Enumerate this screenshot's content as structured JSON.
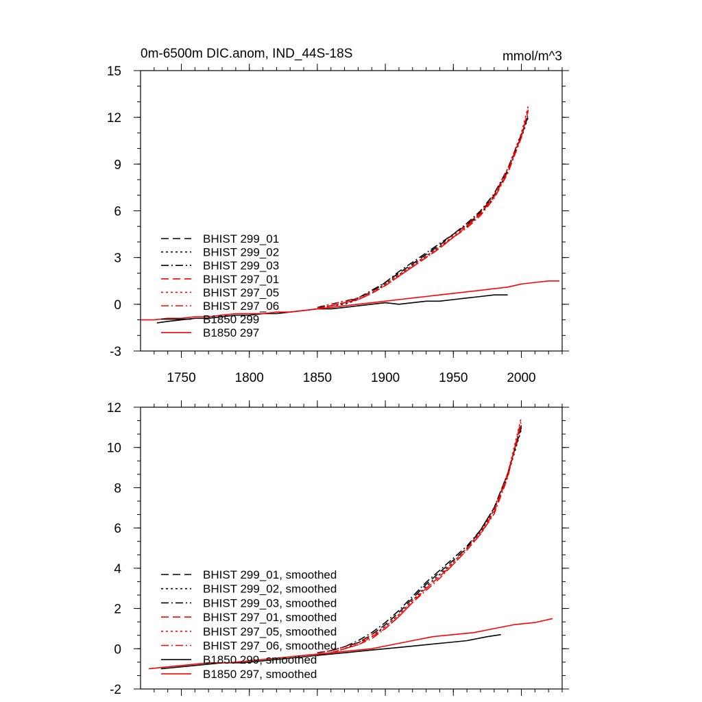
{
  "header": {
    "title": "0m-6500m DIC.anom, IND_44S-18S",
    "units": "mmol/m^3"
  },
  "colors": {
    "black": "#000000",
    "red": "#ff0000"
  },
  "chart_data": [
    {
      "type": "line",
      "panel": "top",
      "xlim": [
        1720,
        2030
      ],
      "ylim": [
        -3,
        15
      ],
      "xticks": [
        1750,
        1800,
        1850,
        1900,
        1950,
        2000
      ],
      "xtick_labels": [
        "1750",
        "1800",
        "1850",
        "1900",
        "1950",
        "2000"
      ],
      "yticks": [
        -3,
        0,
        3,
        6,
        9,
        12,
        15
      ],
      "ytick_labels": [
        "-3",
        "0",
        "3",
        "6",
        "9",
        "12",
        "15"
      ],
      "legend_position": "lower-left",
      "series": [
        {
          "name": "BHIST 299_01",
          "color": "black",
          "dash": "dash",
          "x": [
            1850,
            1860,
            1870,
            1880,
            1890,
            1900,
            1910,
            1920,
            1930,
            1940,
            1950,
            1960,
            1970,
            1980,
            1990,
            2000,
            2005
          ],
          "y": [
            -0.2,
            -0.1,
            0.1,
            0.4,
            0.8,
            1.4,
            2.0,
            2.6,
            3.2,
            3.8,
            4.5,
            5.1,
            5.9,
            7.0,
            8.6,
            10.8,
            12.1
          ]
        },
        {
          "name": "BHIST 299_02",
          "color": "black",
          "dash": "dot",
          "x": [
            1850,
            1860,
            1870,
            1880,
            1890,
            1900,
            1910,
            1920,
            1930,
            1940,
            1950,
            1960,
            1970,
            1980,
            1990,
            2000,
            2005
          ],
          "y": [
            -0.3,
            -0.1,
            0.0,
            0.3,
            0.7,
            1.3,
            1.9,
            2.5,
            3.1,
            3.7,
            4.3,
            5.0,
            5.8,
            6.9,
            8.5,
            10.7,
            12.0
          ]
        },
        {
          "name": "BHIST 299_03",
          "color": "black",
          "dash": "dashdot",
          "x": [
            1850,
            1860,
            1870,
            1880,
            1890,
            1900,
            1910,
            1920,
            1930,
            1940,
            1950,
            1960,
            1970,
            1980,
            1990,
            2000,
            2005
          ],
          "y": [
            -0.2,
            0.0,
            0.2,
            0.4,
            0.9,
            1.4,
            2.1,
            2.7,
            3.3,
            3.9,
            4.5,
            5.2,
            6.0,
            7.1,
            8.7,
            10.9,
            12.2
          ]
        },
        {
          "name": "BHIST 297_01",
          "color": "red",
          "dash": "dash",
          "x": [
            1850,
            1860,
            1870,
            1880,
            1890,
            1900,
            1910,
            1920,
            1930,
            1940,
            1950,
            1960,
            1970,
            1980,
            1990,
            2000,
            2005
          ],
          "y": [
            -0.3,
            -0.1,
            0.1,
            0.3,
            0.7,
            1.2,
            1.8,
            2.4,
            3.0,
            3.6,
            4.3,
            5.0,
            5.8,
            6.9,
            8.5,
            10.8,
            12.4
          ]
        },
        {
          "name": "BHIST 297_05",
          "color": "red",
          "dash": "dot",
          "x": [
            1850,
            1860,
            1870,
            1880,
            1890,
            1900,
            1910,
            1920,
            1930,
            1940,
            1950,
            1960,
            1970,
            1980,
            1990,
            2000,
            2005
          ],
          "y": [
            -0.2,
            0.0,
            0.2,
            0.4,
            0.8,
            1.3,
            1.9,
            2.5,
            3.1,
            3.7,
            4.4,
            5.1,
            5.9,
            7.0,
            8.7,
            11.0,
            12.7
          ]
        },
        {
          "name": "BHIST 297_06",
          "color": "red",
          "dash": "dashdot",
          "x": [
            1850,
            1860,
            1870,
            1880,
            1890,
            1900,
            1910,
            1920,
            1930,
            1940,
            1950,
            1960,
            1970,
            1980,
            1990,
            2000,
            2005
          ],
          "y": [
            -0.3,
            -0.1,
            0.1,
            0.3,
            0.7,
            1.2,
            1.8,
            2.4,
            3.0,
            3.6,
            4.3,
            4.9,
            5.7,
            6.8,
            8.4,
            10.7,
            12.5
          ]
        },
        {
          "name": "B1850 299",
          "color": "black",
          "dash": "solid",
          "x": [
            1732,
            1740,
            1750,
            1760,
            1770,
            1780,
            1790,
            1800,
            1810,
            1820,
            1830,
            1840,
            1850,
            1860,
            1870,
            1880,
            1890,
            1900,
            1910,
            1920,
            1930,
            1940,
            1950,
            1960,
            1970,
            1980,
            1990
          ],
          "y": [
            -1.2,
            -1.1,
            -1.0,
            -0.9,
            -0.9,
            -0.8,
            -0.7,
            -0.7,
            -0.6,
            -0.6,
            -0.5,
            -0.4,
            -0.3,
            -0.3,
            -0.2,
            -0.1,
            0.0,
            0.1,
            0.0,
            0.1,
            0.2,
            0.2,
            0.3,
            0.4,
            0.5,
            0.6,
            0.6
          ]
        },
        {
          "name": "B1850 297",
          "color": "red",
          "dash": "solid",
          "x": [
            1720,
            1730,
            1740,
            1750,
            1760,
            1770,
            1780,
            1790,
            1800,
            1810,
            1820,
            1830,
            1840,
            1850,
            1860,
            1870,
            1880,
            1890,
            1900,
            1910,
            1920,
            1930,
            1940,
            1950,
            1960,
            1970,
            1980,
            1990,
            2000,
            2010,
            2020,
            2028
          ],
          "y": [
            -1.0,
            -1.0,
            -0.9,
            -0.9,
            -0.8,
            -0.8,
            -0.7,
            -0.6,
            -0.6,
            -0.6,
            -0.5,
            -0.5,
            -0.4,
            -0.3,
            -0.2,
            -0.1,
            0.0,
            0.1,
            0.2,
            0.3,
            0.4,
            0.5,
            0.6,
            0.7,
            0.8,
            0.9,
            1.0,
            1.1,
            1.3,
            1.4,
            1.5,
            1.5
          ]
        }
      ]
    },
    {
      "type": "line",
      "panel": "bottom",
      "xlim": [
        1720,
        2030
      ],
      "ylim": [
        -2,
        12
      ],
      "xticks": [
        1750,
        1800,
        1850,
        1900,
        1950,
        2000
      ],
      "xtick_labels": [],
      "yticks": [
        -2,
        0,
        2,
        4,
        6,
        8,
        10,
        12
      ],
      "ytick_labels": [
        "-2",
        "0",
        "2",
        "4",
        "6",
        "8",
        "10",
        "12"
      ],
      "legend_position": "lower-left",
      "series": [
        {
          "name": "BHIST 299_01, smoothed",
          "color": "black",
          "dash": "dash",
          "x": [
            1850,
            1860,
            1870,
            1880,
            1890,
            1900,
            1910,
            1920,
            1930,
            1940,
            1950,
            1960,
            1970,
            1980,
            1990,
            2000
          ],
          "y": [
            -0.2,
            -0.1,
            0.1,
            0.3,
            0.7,
            1.2,
            1.8,
            2.5,
            3.2,
            3.8,
            4.4,
            5.0,
            5.9,
            7.0,
            8.7,
            11.0
          ]
        },
        {
          "name": "BHIST 299_02, smoothed",
          "color": "black",
          "dash": "dot",
          "x": [
            1850,
            1860,
            1870,
            1880,
            1890,
            1900,
            1910,
            1920,
            1930,
            1940,
            1950,
            1960,
            1970,
            1980,
            1990,
            2000
          ],
          "y": [
            -0.3,
            -0.2,
            0.0,
            0.3,
            0.6,
            1.1,
            1.7,
            2.4,
            3.1,
            3.7,
            4.3,
            5.0,
            5.8,
            6.9,
            8.6,
            10.9
          ]
        },
        {
          "name": "BHIST 299_03, smoothed",
          "color": "black",
          "dash": "dashdot",
          "x": [
            1850,
            1860,
            1870,
            1880,
            1890,
            1900,
            1910,
            1920,
            1930,
            1940,
            1950,
            1960,
            1970,
            1980,
            1990,
            2000
          ],
          "y": [
            -0.2,
            -0.1,
            0.1,
            0.4,
            0.8,
            1.3,
            1.9,
            2.6,
            3.3,
            3.9,
            4.5,
            5.1,
            5.9,
            7.0,
            8.7,
            11.1
          ]
        },
        {
          "name": "BHIST 297_01, smoothed",
          "color": "red",
          "dash": "dash",
          "x": [
            1850,
            1860,
            1870,
            1880,
            1890,
            1900,
            1910,
            1920,
            1930,
            1940,
            1950,
            1960,
            1970,
            1980,
            1990,
            2000
          ],
          "y": [
            -0.3,
            -0.2,
            0.0,
            0.2,
            0.6,
            1.0,
            1.6,
            2.3,
            3.0,
            3.6,
            4.2,
            4.9,
            5.7,
            6.8,
            8.6,
            11.2
          ]
        },
        {
          "name": "BHIST 297_05, smoothed",
          "color": "red",
          "dash": "dot",
          "x": [
            1850,
            1860,
            1870,
            1880,
            1890,
            1900,
            1910,
            1920,
            1930,
            1940,
            1950,
            1960,
            1970,
            1980,
            1990,
            2000
          ],
          "y": [
            -0.2,
            -0.1,
            0.1,
            0.3,
            0.7,
            1.1,
            1.7,
            2.4,
            3.0,
            3.6,
            4.3,
            5.0,
            5.8,
            6.9,
            8.7,
            11.5
          ]
        },
        {
          "name": "BHIST 297_06, smoothed",
          "color": "red",
          "dash": "dashdot",
          "x": [
            1850,
            1860,
            1870,
            1880,
            1890,
            1900,
            1910,
            1920,
            1930,
            1940,
            1950,
            1960,
            1970,
            1980,
            1990,
            2000
          ],
          "y": [
            -0.3,
            -0.2,
            0.0,
            0.2,
            0.5,
            1.0,
            1.6,
            2.3,
            2.9,
            3.5,
            4.2,
            4.9,
            5.7,
            6.7,
            8.5,
            11.4
          ]
        },
        {
          "name": "B1850 299, smoothed",
          "color": "black",
          "dash": "solid",
          "x": [
            1735,
            1750,
            1765,
            1780,
            1795,
            1810,
            1825,
            1840,
            1855,
            1870,
            1885,
            1900,
            1915,
            1930,
            1945,
            1960,
            1975,
            1985
          ],
          "y": [
            -1.0,
            -0.9,
            -0.8,
            -0.7,
            -0.7,
            -0.6,
            -0.5,
            -0.4,
            -0.3,
            -0.2,
            -0.1,
            0.0,
            0.1,
            0.2,
            0.3,
            0.4,
            0.6,
            0.7
          ]
        },
        {
          "name": "B1850 297, smoothed",
          "color": "red",
          "dash": "solid",
          "x": [
            1726,
            1740,
            1755,
            1770,
            1785,
            1800,
            1815,
            1830,
            1845,
            1860,
            1875,
            1890,
            1905,
            1920,
            1935,
            1950,
            1965,
            1980,
            1995,
            2010,
            2023
          ],
          "y": [
            -1.0,
            -0.9,
            -0.8,
            -0.7,
            -0.7,
            -0.6,
            -0.5,
            -0.4,
            -0.3,
            -0.2,
            -0.1,
            0.0,
            0.2,
            0.4,
            0.6,
            0.7,
            0.8,
            1.0,
            1.2,
            1.3,
            1.5
          ]
        }
      ]
    }
  ]
}
